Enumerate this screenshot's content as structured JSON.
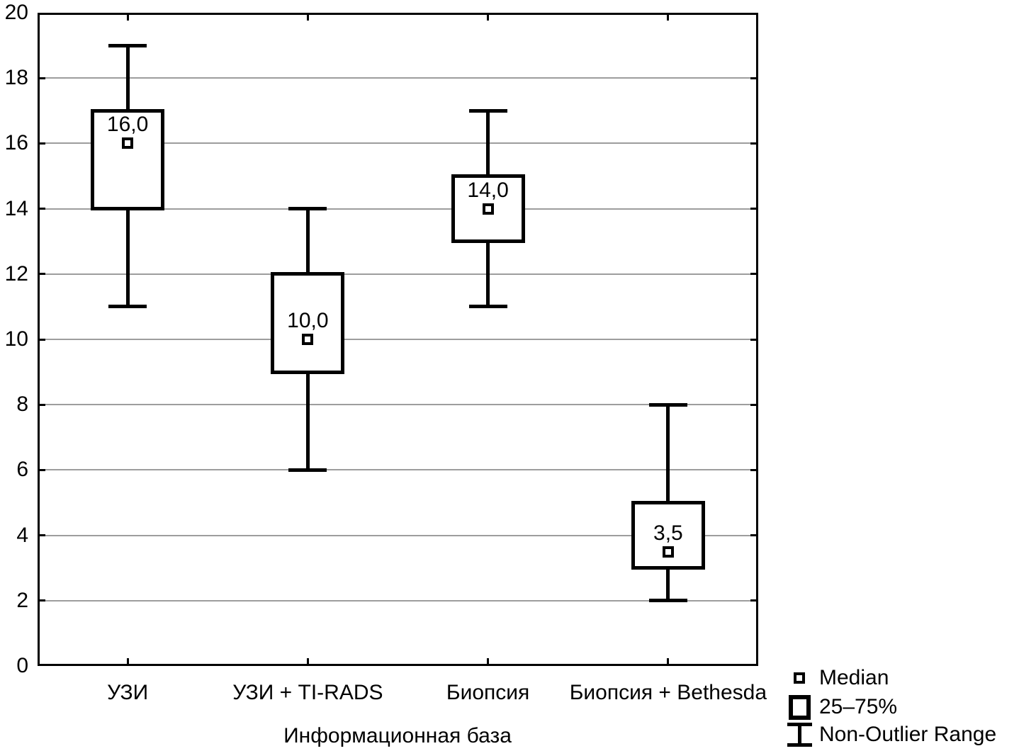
{
  "chart_data": {
    "type": "boxplot",
    "xlabel": "Информационная база",
    "ylabel": "",
    "ylim": [
      0,
      20
    ],
    "yticks": [
      0,
      2,
      4,
      6,
      8,
      10,
      12,
      14,
      16,
      18,
      20
    ],
    "grid": "horizontal-only",
    "legend_position": "bottom-right",
    "categories": [
      "УЗИ",
      "УЗИ + TI-RADS",
      "Биопсия",
      "Биопсия + Bethesda"
    ],
    "series": [
      {
        "category": "УЗИ",
        "median": 16.0,
        "median_label": "16,0",
        "q1": 14,
        "q3": 17,
        "whisker_low": 11,
        "whisker_high": 19
      },
      {
        "category": "УЗИ + TI-RADS",
        "median": 10.0,
        "median_label": "10,0",
        "q1": 9,
        "q3": 12,
        "whisker_low": 6,
        "whisker_high": 14
      },
      {
        "category": "Биопсия",
        "median": 14.0,
        "median_label": "14,0",
        "q1": 13,
        "q3": 15,
        "whisker_low": 11,
        "whisker_high": 17
      },
      {
        "category": "Биопсия + Bethesda",
        "median": 3.5,
        "median_label": "3,5",
        "q1": 3,
        "q3": 5,
        "whisker_low": 2,
        "whisker_high": 8
      }
    ],
    "legend": [
      {
        "icon": "median-marker-icon",
        "label": "Median"
      },
      {
        "icon": "iqr-box-icon",
        "label": "25–75%"
      },
      {
        "icon": "whisker-range-icon",
        "label": "Non-Outlier Range"
      }
    ]
  },
  "colors": {
    "line": "#000000",
    "grid": "#9d9d9d",
    "background": "#ffffff",
    "box_fill": "#ffffff"
  }
}
